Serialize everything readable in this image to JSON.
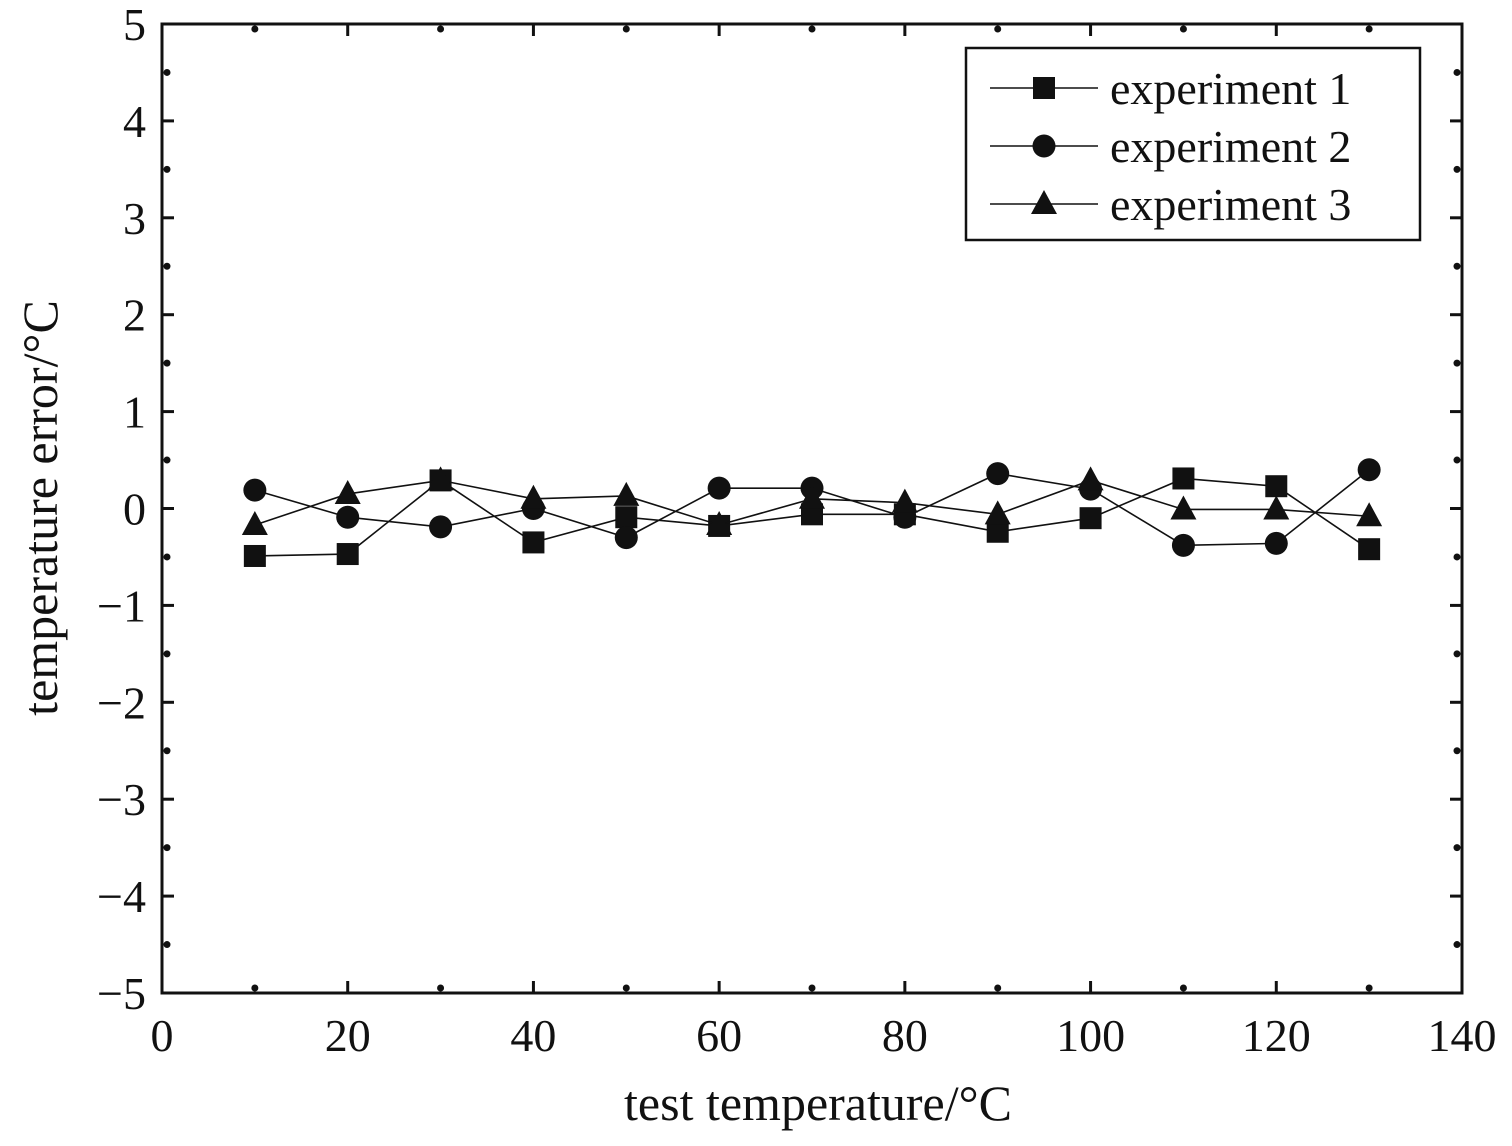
{
  "chart_data": {
    "type": "line",
    "title": "",
    "xlabel": "test temperature/°C",
    "ylabel": "temperature error/°C",
    "xlim": [
      0,
      140
    ],
    "ylim": [
      -5,
      5
    ],
    "x_ticks": [
      0,
      20,
      40,
      60,
      80,
      100,
      120,
      140
    ],
    "y_ticks": [
      -5,
      -4,
      -3,
      -2,
      -1,
      0,
      1,
      2,
      3,
      4,
      5
    ],
    "x_tick_labels": [
      "0",
      "20",
      "40",
      "60",
      "80",
      "100",
      "120",
      "140"
    ],
    "y_tick_labels": [
      "−5",
      "−4",
      "−3",
      "−2",
      "−1",
      "0",
      "1",
      "2",
      "3",
      "4",
      "5"
    ],
    "grid": false,
    "legend_position": "top-right",
    "line_color": "#111111",
    "x": [
      10,
      20,
      30,
      40,
      50,
      60,
      70,
      80,
      90,
      100,
      110,
      120,
      130
    ],
    "series": [
      {
        "name": "experiment 1",
        "marker": "square",
        "values": [
          -0.49,
          -0.47,
          0.29,
          -0.35,
          -0.09,
          -0.18,
          -0.06,
          -0.06,
          -0.24,
          -0.1,
          0.31,
          0.23,
          -0.42
        ]
      },
      {
        "name": "experiment 2",
        "marker": "circle",
        "values": [
          0.19,
          -0.09,
          -0.19,
          0.0,
          -0.3,
          0.21,
          0.21,
          -0.09,
          0.36,
          0.2,
          -0.38,
          -0.36,
          0.4
        ]
      },
      {
        "name": "experiment 3",
        "marker": "triangle",
        "values": [
          -0.17,
          0.15,
          0.29,
          0.1,
          0.13,
          -0.17,
          0.1,
          0.06,
          -0.06,
          0.29,
          -0.01,
          -0.01,
          -0.08
        ]
      }
    ]
  }
}
